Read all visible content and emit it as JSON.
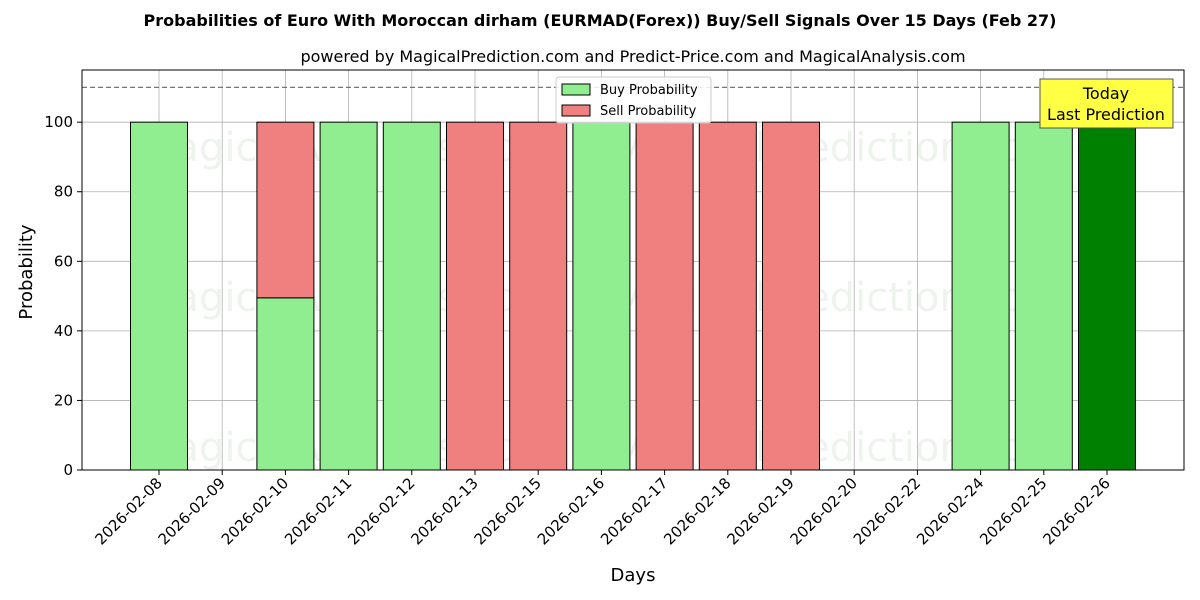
{
  "chart_data": {
    "type": "bar",
    "title": "Probabilities of Euro With Moroccan dirham (EURMAD(Forex)) Buy/Sell Signals Over 15 Days (Feb 27)",
    "subtitle": "powered by MagicalPrediction.com and Predict-Price.com and MagicalAnalysis.com",
    "xlabel": "Days",
    "ylabel": "Probability",
    "ylim": [
      0,
      115
    ],
    "yticks": [
      0,
      20,
      40,
      60,
      80,
      100
    ],
    "reference_line": 110,
    "grid": true,
    "legend_position": "top-center",
    "categories": [
      "2026-02-08",
      "2026-02-09",
      "2026-02-10",
      "2026-02-11",
      "2026-02-12",
      "2026-02-13",
      "2026-02-15",
      "2026-02-16",
      "2026-02-17",
      "2026-02-18",
      "2026-02-19",
      "2026-02-20",
      "2026-02-22",
      "2026-02-24",
      "2026-02-25",
      "2026-02-26"
    ],
    "series": [
      {
        "name": "Buy Probability",
        "color": "#90ee90",
        "values": [
          100,
          0,
          49.5,
          100,
          100,
          0,
          0,
          100,
          0,
          0,
          0,
          0,
          0,
          100,
          100,
          100
        ]
      },
      {
        "name": "Sell Probability",
        "color": "#f08080",
        "values": [
          0,
          0,
          50.5,
          0,
          0,
          100,
          100,
          0,
          100,
          100,
          100,
          0,
          0,
          0,
          0,
          0
        ]
      }
    ],
    "highlight": {
      "index": 15,
      "color": "#008000"
    },
    "annotation": {
      "lines": [
        "Today",
        "Last Prediction"
      ],
      "color": "#ffff44"
    },
    "watermarks": [
      "MagicalAnalysis.com",
      "MagicalPrediction.com"
    ]
  }
}
